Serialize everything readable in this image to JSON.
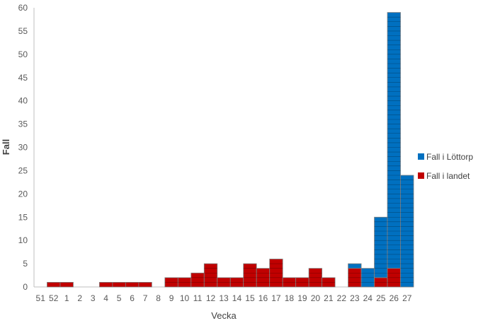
{
  "chart_data": {
    "type": "bar",
    "stacked": true,
    "categories": [
      "51",
      "52",
      "1",
      "2",
      "3",
      "4",
      "5",
      "6",
      "7",
      "8",
      "9",
      "10",
      "11",
      "12",
      "13",
      "14",
      "15",
      "16",
      "17",
      "18",
      "19",
      "20",
      "21",
      "22",
      "23",
      "24",
      "25",
      "26",
      "27"
    ],
    "series": [
      {
        "name": "Fall i landet",
        "color": "#c00000",
        "values": [
          0,
          1,
          1,
          0,
          0,
          1,
          1,
          1,
          1,
          0,
          2,
          2,
          3,
          5,
          2,
          2,
          5,
          4,
          6,
          2,
          2,
          4,
          2,
          0,
          4,
          0,
          2,
          4,
          0
        ]
      },
      {
        "name": "Fall i Löttorp",
        "color": "#0070c0",
        "values": [
          0,
          0,
          0,
          0,
          0,
          0,
          0,
          0,
          0,
          0,
          0,
          0,
          0,
          0,
          0,
          0,
          0,
          0,
          0,
          0,
          0,
          0,
          0,
          0,
          1,
          4,
          13,
          55,
          24
        ]
      }
    ],
    "xlabel": "Vecka",
    "ylabel": "Fall",
    "ylim": [
      0,
      60
    ],
    "ytick_step": 5,
    "grid": false,
    "legend_position": "right",
    "legend_order": [
      "Fall i Löttorp",
      "Fall i landet"
    ]
  }
}
